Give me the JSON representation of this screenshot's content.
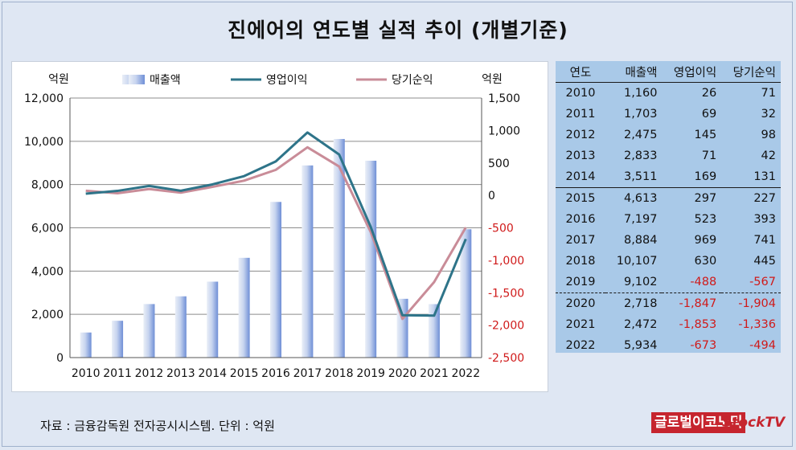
{
  "title": "진에어의 연도별 실적 추이 (개별기준)",
  "source": "자료 : 금융감독원 전자공시시스템. 단위 : 억원",
  "logos": {
    "left": "글로벌이코노믹",
    "right": "StockTV"
  },
  "colors": {
    "bar": "#9fb4e0",
    "operating": "#2e7489",
    "net": "#c98c98",
    "neg_text": "#d01a1a",
    "table_bg": "#a9c9e8"
  },
  "chart_data": {
    "type": "bar+line",
    "categories": [
      "2010",
      "2011",
      "2012",
      "2013",
      "2014",
      "2015",
      "2016",
      "2017",
      "2018",
      "2019",
      "2020",
      "2021",
      "2022"
    ],
    "series": [
      {
        "name": "매출액",
        "type": "bar",
        "axis": "left",
        "values": [
          1160,
          1703,
          2475,
          2833,
          3511,
          4613,
          7197,
          8884,
          10107,
          9102,
          2718,
          2472,
          5934
        ]
      },
      {
        "name": "영업이익",
        "type": "line",
        "axis": "right",
        "values": [
          26,
          69,
          145,
          71,
          169,
          297,
          523,
          969,
          630,
          -488,
          -1847,
          -1853,
          -673
        ]
      },
      {
        "name": "당기순익",
        "type": "line",
        "axis": "right",
        "values": [
          71,
          32,
          98,
          42,
          131,
          227,
          393,
          741,
          445,
          -567,
          -1904,
          -1336,
          -494
        ]
      }
    ],
    "left_axis": {
      "unit": "억원",
      "min": 0,
      "max": 12000,
      "ticks": [
        "0",
        "2,000",
        "4,000",
        "6,000",
        "8,000",
        "10,000",
        "12,000"
      ]
    },
    "right_axis": {
      "unit": "억원",
      "min": -2500,
      "max": 1500,
      "ticks": [
        "1,500",
        "1,000",
        "500",
        "0",
        "-500",
        "-1,000",
        "-1,500",
        "-2,000",
        "-2,500"
      ]
    },
    "grid": true,
    "legend_position": "top"
  },
  "table": {
    "headers": [
      "연도",
      "매출액",
      "영업이익",
      "당기순익"
    ],
    "rows": [
      [
        "2010",
        "1,160",
        "26",
        "71"
      ],
      [
        "2011",
        "1,703",
        "69",
        "32"
      ],
      [
        "2012",
        "2,475",
        "145",
        "98"
      ],
      [
        "2013",
        "2,833",
        "71",
        "42"
      ],
      [
        "2014",
        "3,511",
        "169",
        "131"
      ],
      [
        "2015",
        "4,613",
        "297",
        "227"
      ],
      [
        "2016",
        "7,197",
        "523",
        "393"
      ],
      [
        "2017",
        "8,884",
        "969",
        "741"
      ],
      [
        "2018",
        "10,107",
        "630",
        "445"
      ],
      [
        "2019",
        "9,102",
        "-488",
        "-567"
      ],
      [
        "2020",
        "2,718",
        "-1,847",
        "-1,904"
      ],
      [
        "2021",
        "2,472",
        "-1,853",
        "-1,336"
      ],
      [
        "2022",
        "5,934",
        "-673",
        "-494"
      ]
    ]
  }
}
